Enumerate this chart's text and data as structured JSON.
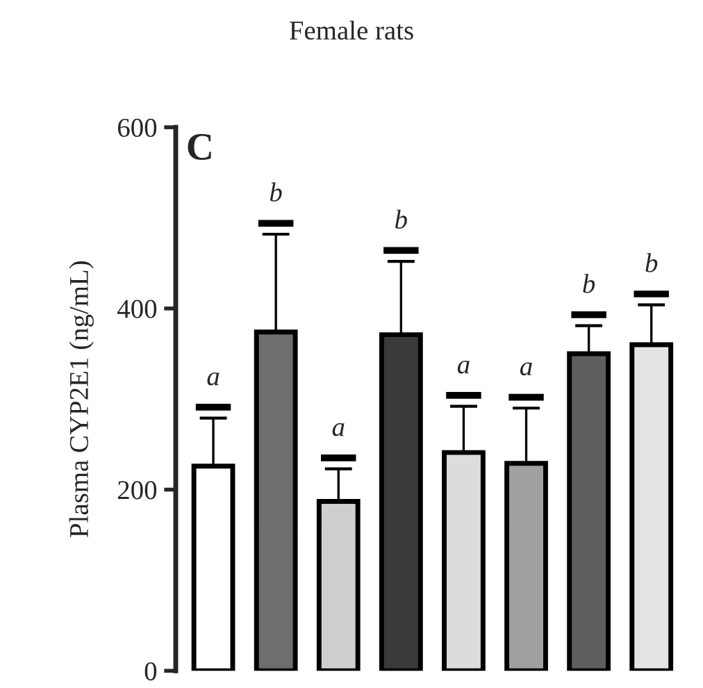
{
  "chart_data": {
    "type": "bar",
    "title": "Female rats",
    "ylabel": "Plasma CYP2E1 (ng/mL)",
    "annotations": [
      "C",
      "a",
      "b",
      "a",
      "b",
      "a",
      "a",
      "b",
      "b"
    ],
    "categories": [
      null,
      null,
      null,
      null,
      null,
      null,
      null,
      null
    ],
    "values": [
      226,
      374,
      187,
      371,
      241,
      229,
      350,
      360
    ],
    "errors": [
      [
        226,
        279
      ],
      [
        374,
        482
      ],
      [
        187,
        223
      ],
      [
        371,
        452
      ],
      [
        241,
        292
      ],
      [
        229,
        290
      ],
      [
        350,
        381
      ],
      [
        360,
        404
      ]
    ],
    "colors": [
      "#ffffff",
      "#6e6e6e",
      "#cfcfcf",
      "#3a3a3a",
      "#dcdcdc",
      "#a0a0a0",
      "#5e5e5e",
      "#e4e4e4"
    ],
    "ylim": [
      0,
      600
    ],
    "yticks": [
      0,
      200,
      400,
      600
    ],
    "tick_labels": "y",
    "grid": false,
    "legend": false
  }
}
